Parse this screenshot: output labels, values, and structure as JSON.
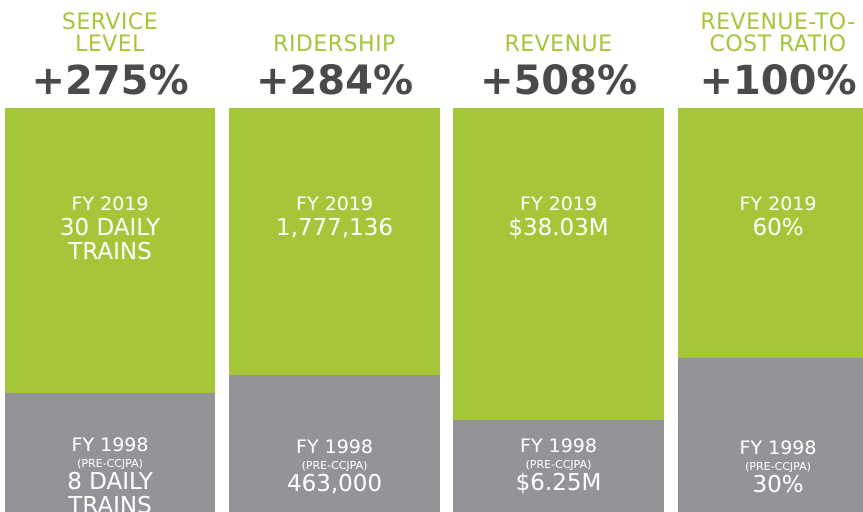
{
  "panels": [
    {
      "title": [
        "SERVICE",
        "LEVEL"
      ],
      "change": "+275%",
      "top_label": "FY 2019",
      "top_value": [
        "30 DAILY",
        "TRAINS"
      ],
      "bottom_label": "FY 1998",
      "bottom_note": "(PRE-CCJPA)",
      "bottom_value": [
        "8 DAILY",
        "TRAINS"
      ]
    },
    {
      "title": [
        "RIDERSHIP"
      ],
      "change": "+284%",
      "top_label": "FY 2019",
      "top_value": [
        "1,777,136"
      ],
      "bottom_label": "FY 1998",
      "bottom_note": "(PRE-CCJPA)",
      "bottom_value": [
        "463,000"
      ]
    },
    {
      "title": [
        "REVENUE"
      ],
      "change": "+508%",
      "top_label": "FY 2019",
      "top_value": [
        "$38.03M"
      ],
      "bottom_label": "FY 1998",
      "bottom_note": "(PRE-CCJPA)",
      "bottom_value": [
        "$6.25M"
      ]
    },
    {
      "title": [
        "REVENUE-TO-",
        "COST RATIO"
      ],
      "change": "+100%",
      "top_label": "FY 2019",
      "top_value": [
        "60%"
      ],
      "bottom_label": "FY 1998",
      "bottom_note": "(PRE-CCJPA)",
      "bottom_value": [
        "30%"
      ]
    }
  ]
}
